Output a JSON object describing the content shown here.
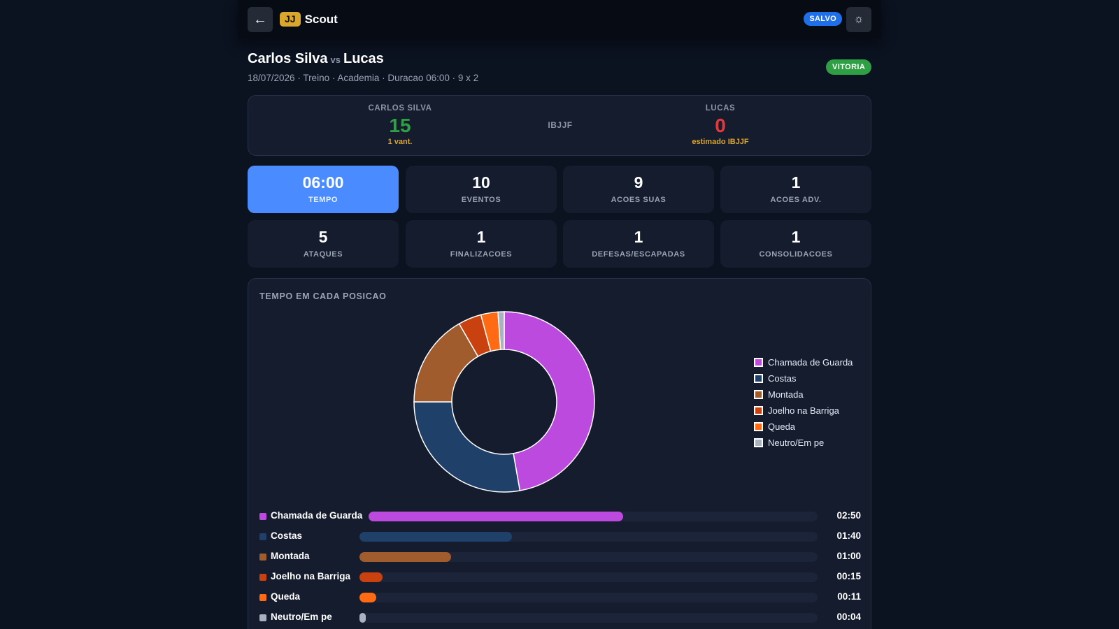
{
  "header": {
    "back_label": "←",
    "brand_badge": "JJ",
    "brand_name": "Scout",
    "saved_label": "SALVO",
    "theme_label": "☼"
  },
  "match": {
    "athlete": "Carlos Silva",
    "vs": "vs",
    "opponent": "Lucas",
    "meta": "18/07/2026 · Treino · Academia · Duracao 06:00 · 9 x 2",
    "result": "VITORIA"
  },
  "scoreboard": {
    "left_name": "CARLOS SILVA",
    "left_points": "15",
    "left_sub": "1 vant.",
    "ruleset": "IBJJF",
    "right_name": "LUCAS",
    "right_points": "0",
    "right_sub": "estimado IBJJF"
  },
  "stats": [
    {
      "value": "06:00",
      "label": "TEMPO"
    },
    {
      "value": "10",
      "label": "EVENTOS"
    },
    {
      "value": "9",
      "label": "ACOES SUAS"
    },
    {
      "value": "1",
      "label": "ACOES ADV."
    },
    {
      "value": "5",
      "label": "ATAQUES"
    },
    {
      "value": "1",
      "label": "FINALIZACOES"
    },
    {
      "value": "1",
      "label": "DEFESAS/ESCAPADAS"
    },
    {
      "value": "1",
      "label": "CONSOLIDACOES"
    }
  ],
  "positions_panel": {
    "title": "TEMPO EM CADA POSICAO"
  },
  "chart_data": {
    "type": "pie",
    "title": "TEMPO EM CADA POSICAO",
    "unit": "seconds",
    "categories": [
      "Chamada de Guarda",
      "Costas",
      "Montada",
      "Joelho na Barriga",
      "Queda",
      "Neutro/Em pe"
    ],
    "values": [
      170,
      100,
      60,
      15,
      11,
      4
    ],
    "labels": [
      "02:50",
      "01:40",
      "01:00",
      "00:15",
      "00:11",
      "00:04"
    ],
    "colors": [
      "#bd4ade",
      "#1f4068",
      "#a05c2c",
      "#c8410f",
      "#ff6a12",
      "#a9b2c1"
    ],
    "bar_max": 300,
    "legend": "right"
  }
}
